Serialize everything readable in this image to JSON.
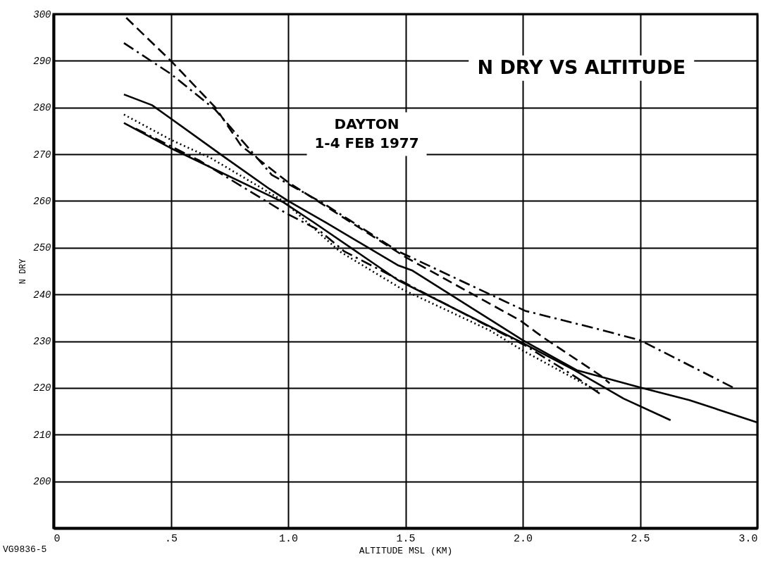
{
  "chart_data": {
    "type": "line",
    "title": "N DRY VS ALTITUDE",
    "xlabel": "ALTITUDE MSL (KM)",
    "ylabel": "N DRY",
    "annotations": [
      "DAYTON",
      "1-4 FEB 1977",
      "VG9836-5"
    ],
    "xlim": [
      0,
      3
    ],
    "ylim": [
      190,
      300
    ],
    "xticks": [
      0,
      {
        "value": 0.5,
        "label": ".5"
      },
      {
        "value": 1,
        "label": "1.0"
      },
      1.5,
      {
        "value": 2,
        "label": "2.0"
      },
      2.5,
      {
        "value": 3,
        "label": "3.0"
      }
    ],
    "yticks": [
      200,
      210,
      220,
      230,
      240,
      250,
      260,
      270,
      280,
      290,
      300
    ],
    "grid": true,
    "marker": "none",
    "series": [
      {
        "color": "#000000",
        "line_style": "dashed",
        "x": [
          0.31,
          0.5,
          0.69,
          0.8,
          1.0,
          1.5,
          1.99,
          2.09,
          2.33,
          2.37
        ],
        "values": [
          299.2,
          290,
          280,
          271.8,
          264,
          248,
          234.4,
          230.7,
          222.7,
          221
        ]
      },
      {
        "color": "#000000",
        "line_style": "dashdot",
        "x": [
          0.3,
          0.5,
          0.69,
          0.93,
          1.15,
          1.47,
          2.01,
          2.32,
          2.5,
          2.9
        ],
        "values": [
          293.8,
          287.2,
          279.5,
          265.6,
          259.5,
          249.2,
          236.5,
          232.6,
          230.2,
          220
        ]
      },
      {
        "color": "#000000",
        "line_style": "solid",
        "x": [
          0.3,
          0.42,
          0.49,
          0.72,
          0.92,
          1.0,
          1.16,
          1.47,
          1.53,
          2.0,
          2.23,
          2.5,
          2.71,
          3.0
        ],
        "values": [
          282.8,
          280.5,
          278,
          269.7,
          262.6,
          260,
          255.4,
          246.2,
          245.1,
          230.2,
          223.8,
          220.1,
          217.4,
          212.6
        ]
      },
      {
        "color": "#000000",
        "line_style": "solid",
        "x": [
          0.3,
          0.5,
          0.98,
          1.11,
          1.47,
          2.0,
          2.22,
          2.43,
          2.63
        ],
        "values": [
          276.7,
          271.3,
          259.7,
          255.4,
          243,
          229.6,
          223.8,
          217.7,
          213.1
        ]
      },
      {
        "color": "#000000",
        "line_style": "dotted",
        "x": [
          0.3,
          0.5,
          0.67,
          0.98,
          1.22,
          1.49,
          1.86,
          2.0,
          2.33
        ],
        "values": [
          278.5,
          273.1,
          269.2,
          260,
          249.2,
          241,
          232.3,
          228,
          219
        ]
      },
      {
        "color": "#000000",
        "line_style": "dashdot",
        "x": [
          0.35,
          0.62,
          0.99,
          1.13,
          1.24,
          2.01,
          2.23,
          2.33
        ],
        "values": [
          275.5,
          268.7,
          257.4,
          253.8,
          249.2,
          229.1,
          222.2,
          218.7
        ]
      }
    ]
  }
}
